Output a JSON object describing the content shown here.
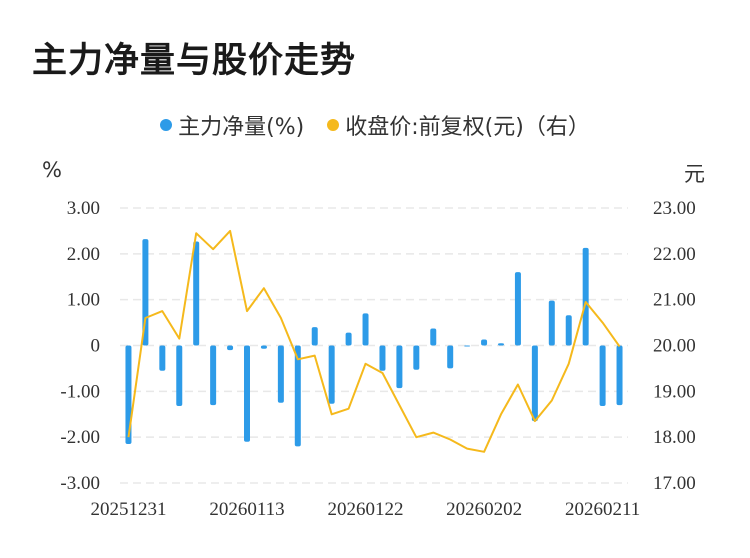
{
  "title": "主力净量与股价走势",
  "legend": {
    "bar_label": "主力净量(%)",
    "line_label": "收盘价:前复权(元)（右）"
  },
  "colors": {
    "bar": "#2d9be8",
    "line": "#f5b91c",
    "grid": "#e8e8e8"
  },
  "chart_data": {
    "type": "bar",
    "left_unit": "%",
    "right_unit": "元",
    "x_tick_labels": [
      "20251231",
      "20260113",
      "20260122",
      "20260202",
      "20260211"
    ],
    "x_tick_indices": [
      0,
      7,
      14,
      21,
      28
    ],
    "y_left": {
      "min": -3,
      "max": 3,
      "ticks": [
        -3,
        -2,
        -1,
        0,
        1,
        2,
        3
      ],
      "tick_labels": [
        "-3.00",
        "-2.00",
        "-1.00",
        "0",
        "1.00",
        "2.00",
        "3.00"
      ]
    },
    "y_right": {
      "min": 17,
      "max": 23,
      "ticks": [
        17,
        18,
        19,
        20,
        21,
        22,
        23
      ],
      "tick_labels": [
        "17.00",
        "18.00",
        "19.00",
        "20.00",
        "21.00",
        "22.00",
        "23.00"
      ]
    },
    "series": [
      {
        "name": "主力净量(%)",
        "type": "bar",
        "axis": "left",
        "values": [
          -2.15,
          2.32,
          -0.55,
          -1.32,
          2.27,
          -1.3,
          -0.1,
          -2.1,
          -0.07,
          -1.25,
          -2.2,
          0.4,
          -1.27,
          0.28,
          0.7,
          -0.55,
          -0.93,
          -0.53,
          0.37,
          -0.5,
          -0.02,
          0.13,
          0.05,
          1.6,
          -1.65,
          0.98,
          0.66,
          2.13,
          -1.32,
          -1.3
        ]
      },
      {
        "name": "收盘价:前复权(元)（右）",
        "type": "line",
        "axis": "right",
        "values": [
          18.0,
          20.6,
          20.75,
          20.15,
          22.45,
          22.1,
          22.5,
          20.75,
          21.25,
          20.6,
          19.7,
          19.78,
          18.5,
          18.62,
          19.6,
          19.4,
          18.7,
          18.0,
          18.1,
          17.95,
          17.75,
          17.68,
          18.5,
          19.15,
          18.35,
          18.8,
          19.6,
          20.95,
          20.5,
          19.98
        ]
      }
    ]
  }
}
